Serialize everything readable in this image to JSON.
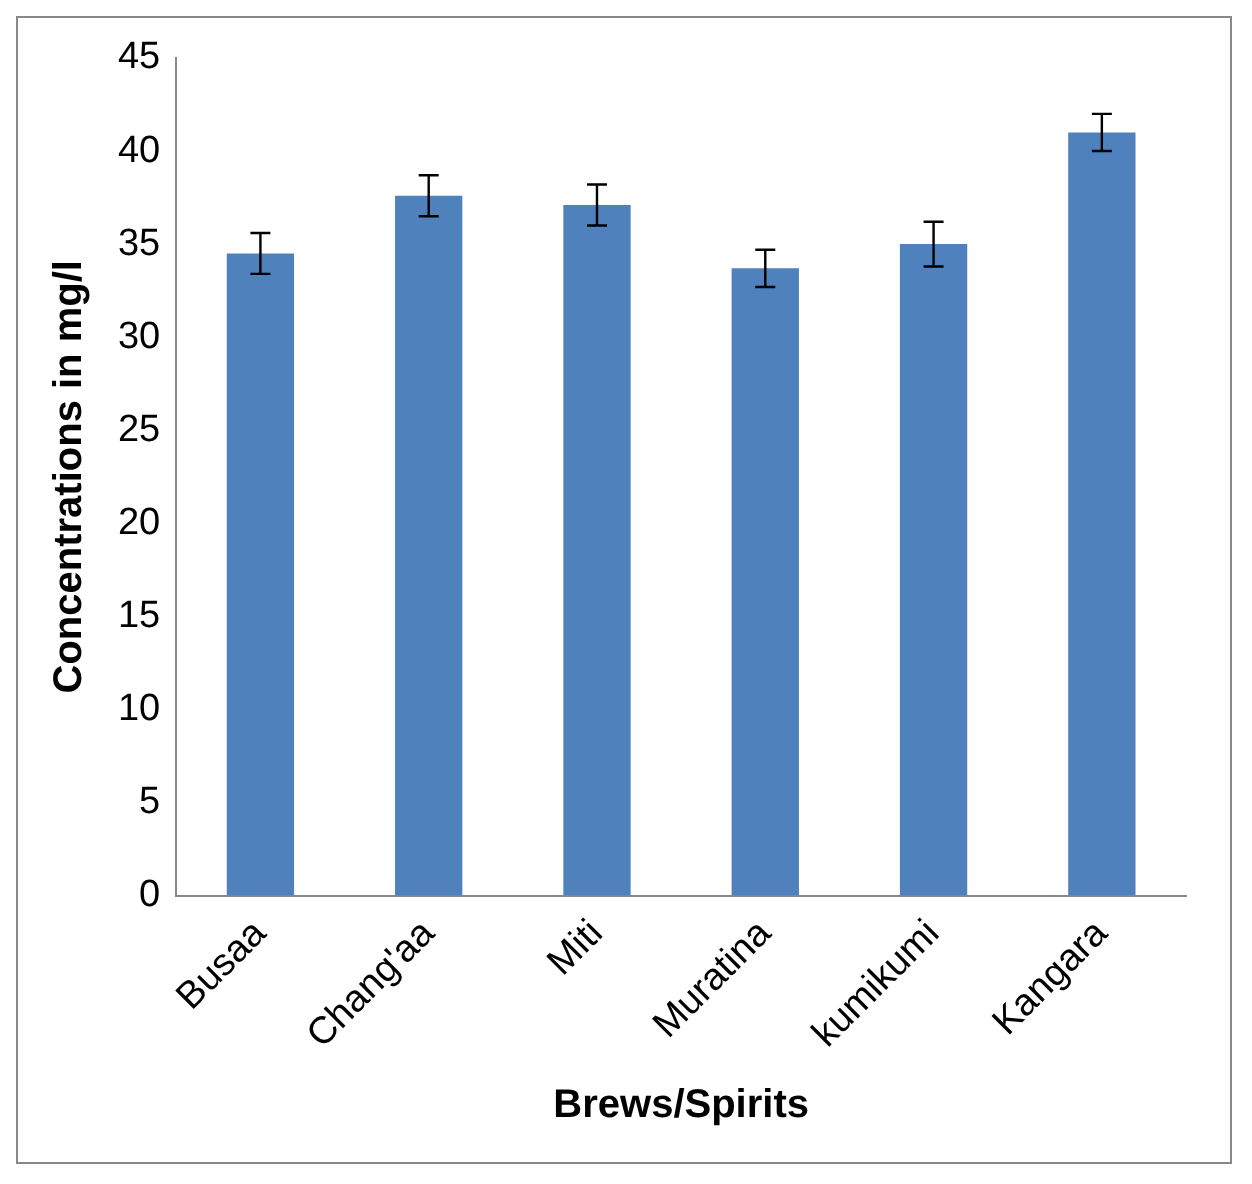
{
  "chart_data": {
    "type": "bar",
    "xlabel": "Brews/Spirits",
    "ylabel": "Concentrations in mg/l",
    "categories": [
      "Busaa",
      "Chang'aa",
      "Miti",
      "Muratina",
      "kumikumi",
      "Kangara"
    ],
    "values": [
      34.5,
      37.6,
      37.1,
      33.7,
      35.0,
      41.0
    ],
    "errors": [
      1.1,
      1.1,
      1.1,
      1.0,
      1.2,
      1.0
    ],
    "color": "#4f81bd",
    "ylim": [
      0,
      45
    ],
    "yticks": [
      0,
      5,
      10,
      15,
      20,
      25,
      30,
      35,
      40,
      45
    ],
    "grid": false,
    "legend": false
  }
}
